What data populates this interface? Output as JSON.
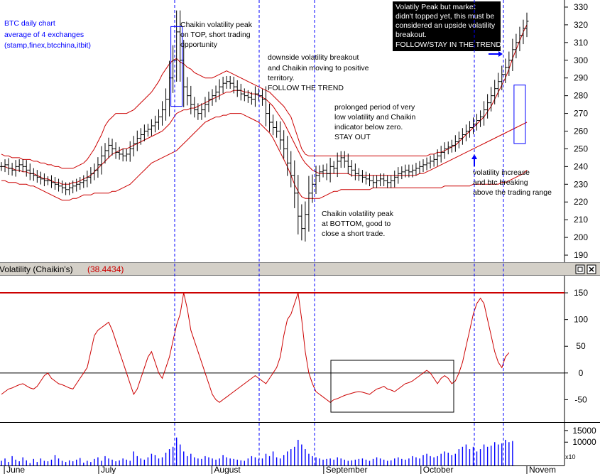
{
  "chart_data": {
    "type": "ohlc-bar",
    "title": "BTC daily chart",
    "subtitle": [
      "average of 4 exchanges",
      "(stamp,finex,btcchina,itbit)"
    ],
    "price_axis": {
      "ticks": [
        190,
        200,
        210,
        220,
        230,
        240,
        250,
        260,
        270,
        280,
        290,
        300,
        310,
        320,
        330
      ],
      "ylim": [
        186,
        334
      ]
    },
    "time_axis": {
      "labels": [
        "June",
        "July",
        "August",
        "September",
        "October",
        "Novem"
      ],
      "label_day_index": [
        2,
        67,
        145,
        222,
        289,
        362
      ]
    },
    "price_close": [
      240,
      241,
      239,
      238,
      240,
      241,
      240,
      238,
      236,
      235,
      234,
      233,
      232,
      232,
      231,
      230,
      229,
      228,
      227,
      228,
      229,
      230,
      231,
      232,
      234,
      236,
      238,
      241,
      246,
      249,
      252,
      250,
      248,
      247,
      246,
      247,
      250,
      253,
      256,
      258,
      260,
      261,
      263,
      265,
      268,
      272,
      278,
      290,
      300,
      316,
      300,
      285,
      280,
      275,
      272,
      270,
      272,
      275,
      278,
      280,
      282,
      285,
      287,
      288,
      287,
      285,
      283,
      281,
      280,
      279,
      278,
      281,
      280,
      278,
      270,
      265,
      262,
      260,
      255,
      250,
      242,
      235,
      225,
      212,
      205,
      213,
      225,
      230,
      235,
      237,
      238,
      236,
      240,
      239,
      243,
      245,
      243,
      240,
      238,
      236,
      235,
      234,
      233,
      232,
      231,
      232,
      233,
      232,
      231,
      232,
      234,
      236,
      237,
      238,
      237,
      238,
      239,
      240,
      241,
      242,
      243,
      244,
      246,
      248,
      250,
      251,
      252,
      254,
      256,
      258,
      260,
      262,
      264,
      266,
      268,
      272,
      276,
      280,
      284,
      288,
      292,
      296,
      300,
      306,
      310,
      314,
      318,
      322
    ],
    "bollinger": {
      "upper": [
        247,
        246,
        246,
        245,
        245,
        245,
        244,
        244,
        244,
        243,
        243,
        242,
        242,
        241,
        241,
        240,
        240,
        239,
        239,
        239,
        239,
        240,
        241,
        242,
        244,
        247,
        250,
        254,
        258,
        263,
        266,
        268,
        270,
        270,
        270,
        270,
        271,
        272,
        274,
        276,
        278,
        280,
        282,
        285,
        288,
        292,
        295,
        298,
        300,
        301,
        299,
        298,
        296,
        295,
        293,
        292,
        291,
        290,
        290,
        290,
        291,
        292,
        293,
        294,
        293,
        292,
        291,
        290,
        289,
        288,
        287,
        286,
        285,
        284,
        283,
        282,
        280,
        278,
        276,
        274,
        271,
        268,
        262,
        256,
        250,
        247,
        246,
        246,
        246,
        246,
        246,
        246,
        246,
        246,
        246,
        246,
        246,
        246,
        246,
        246,
        246,
        246,
        246,
        246,
        246,
        246,
        246,
        246,
        246,
        246,
        246,
        246,
        246,
        246,
        246,
        246,
        246,
        246,
        246,
        246,
        247,
        247,
        248,
        248,
        249,
        250,
        251,
        252,
        254,
        256,
        258,
        260,
        262,
        264,
        266,
        268,
        271,
        274,
        278,
        282,
        286,
        290,
        295,
        301,
        306,
        311,
        316,
        320
      ],
      "middle": [
        240,
        240,
        239,
        239,
        238,
        238,
        237,
        237,
        236,
        236,
        235,
        234,
        233,
        233,
        232,
        231,
        231,
        230,
        230,
        230,
        231,
        231,
        232,
        233,
        234,
        235,
        237,
        239,
        241,
        243,
        245,
        247,
        248,
        249,
        250,
        250,
        251,
        252,
        253,
        254,
        255,
        256,
        257,
        258,
        259,
        260,
        262,
        264,
        267,
        270,
        271,
        272,
        272,
        273,
        273,
        274,
        275,
        276,
        277,
        278,
        279,
        280,
        281,
        282,
        282,
        283,
        283,
        283,
        282,
        282,
        281,
        281,
        280,
        279,
        278,
        276,
        274,
        271,
        268,
        265,
        261,
        257,
        253,
        249,
        245,
        242,
        240,
        238,
        237,
        236,
        236,
        236,
        236,
        236,
        236,
        236,
        236,
        236,
        235,
        235,
        235,
        235,
        235,
        235,
        235,
        235,
        235,
        235,
        235,
        235,
        235,
        235,
        235,
        235,
        235,
        235,
        235,
        236,
        236,
        237,
        238,
        239,
        240,
        241,
        242,
        243,
        244,
        245,
        246,
        247,
        248,
        249,
        250,
        251,
        252,
        253,
        254,
        255,
        256,
        257,
        258,
        259,
        260,
        261,
        262,
        263,
        264,
        265
      ],
      "lower": [
        232,
        232,
        231,
        231,
        231,
        230,
        230,
        230,
        229,
        229,
        228,
        227,
        226,
        225,
        224,
        223,
        222,
        221,
        221,
        221,
        222,
        222,
        223,
        224,
        224,
        224,
        225,
        225,
        225,
        225,
        225,
        226,
        226,
        227,
        228,
        229,
        230,
        232,
        234,
        236,
        238,
        240,
        242,
        243,
        244,
        245,
        246,
        247,
        248,
        249,
        251,
        253,
        255,
        257,
        259,
        261,
        263,
        265,
        266,
        267,
        268,
        268,
        269,
        269,
        270,
        270,
        270,
        270,
        269,
        268,
        267,
        266,
        265,
        263,
        261,
        259,
        256,
        252,
        248,
        244,
        240,
        235,
        230,
        226,
        223,
        222,
        222,
        222,
        222,
        222,
        223,
        224,
        225,
        226,
        226,
        227,
        227,
        227,
        227,
        227,
        227,
        227,
        227,
        227,
        228,
        228,
        228,
        228,
        228,
        228,
        228,
        228,
        228,
        228,
        228,
        228,
        228,
        228,
        228,
        228,
        228,
        228,
        228,
        228,
        229,
        229,
        229,
        229,
        229,
        229,
        229,
        229,
        230,
        230,
        230,
        230,
        230,
        230,
        230,
        230,
        231,
        231,
        232,
        233,
        234,
        235,
        236,
        238
      ]
    },
    "indicator": {
      "title": "Volatility (Chaikin's)",
      "value_label": "(38.4434)",
      "ticks": [
        -50,
        0,
        50,
        100,
        150
      ],
      "ylim": [
        -92,
        182
      ],
      "reference_level": 150,
      "values": [
        -40,
        -35,
        -30,
        -28,
        -25,
        -22,
        -20,
        -24,
        -28,
        -30,
        -25,
        -15,
        -5,
        0,
        -10,
        -15,
        -20,
        -22,
        -25,
        -28,
        -30,
        -20,
        -10,
        0,
        10,
        40,
        70,
        80,
        85,
        90,
        95,
        80,
        60,
        40,
        20,
        0,
        -20,
        -40,
        -30,
        -10,
        10,
        30,
        40,
        20,
        0,
        -10,
        10,
        30,
        60,
        90,
        110,
        150,
        120,
        80,
        60,
        40,
        20,
        0,
        -20,
        -40,
        -50,
        -55,
        -50,
        -45,
        -40,
        -35,
        -30,
        -25,
        -20,
        -15,
        -10,
        -5,
        -10,
        -15,
        -20,
        -10,
        0,
        10,
        30,
        70,
        100,
        110,
        130,
        150,
        100,
        40,
        0,
        -20,
        -35,
        -40,
        -45,
        -50,
        -55,
        -50,
        -48,
        -45,
        -42,
        -40,
        -38,
        -36,
        -35,
        -36,
        -38,
        -40,
        -35,
        -30,
        -28,
        -25,
        -30,
        -32,
        -35,
        -30,
        -25,
        -20,
        -18,
        -15,
        -10,
        -5,
        0,
        5,
        0,
        -10,
        -20,
        -10,
        -5,
        -10,
        -20,
        -15,
        0,
        20,
        50,
        80,
        110,
        130,
        140,
        130,
        100,
        70,
        40,
        20,
        10,
        30,
        38
      ]
    },
    "volume": {
      "ticks": [
        10000,
        15000
      ],
      "tick_labels": [
        "10000",
        "15000"
      ],
      "multiplier_label": "x10",
      "values": [
        2000,
        3000,
        1500,
        4000,
        2500,
        1800,
        3500,
        2200,
        1000,
        2800,
        1500,
        3000,
        2000,
        1800,
        2500,
        4500,
        3000,
        2000,
        1500,
        2200,
        1800,
        2500,
        3200,
        1200,
        2000,
        1500,
        2800,
        3500,
        2000,
        4000,
        3000,
        2500,
        1800,
        2200,
        3000,
        2500,
        2000,
        6000,
        4000,
        3000,
        2500,
        3500,
        5000,
        4500,
        3000,
        3500,
        5500,
        7000,
        8000,
        12000,
        9000,
        6000,
        4000,
        5000,
        3500,
        3000,
        2800,
        4000,
        3500,
        3000,
        2500,
        3000,
        4500,
        3500,
        3000,
        2800,
        2500,
        2200,
        2000,
        3000,
        4000,
        3500,
        2800,
        3000,
        5000,
        4000,
        6000,
        3500,
        3000,
        4500,
        6000,
        7000,
        8000,
        11000,
        9000,
        7000,
        5000,
        4000,
        3500,
        3000,
        2500,
        2800,
        3000,
        2500,
        3500,
        3000,
        2500,
        2000,
        2200,
        2500,
        2800,
        3000,
        2500,
        2000,
        2800,
        3500,
        3000,
        2500,
        2000,
        2200,
        3000,
        3500,
        2800,
        2500,
        3000,
        4000,
        3500,
        3000,
        4500,
        5000,
        4000,
        3500,
        4000,
        5000,
        6000,
        5500,
        4500,
        5000,
        7000,
        8000,
        9000,
        7000,
        8000,
        6000,
        7000,
        9000,
        8000,
        8500,
        10000,
        9000,
        9500,
        11000,
        10000,
        10500
      ]
    },
    "event_lines_day_index": [
      67,
      145,
      200,
      260,
      290
    ],
    "annotations": {
      "volatility_peak_top": [
        "Chaikin volatility peak",
        "on TOP, short trading",
        "opportunity"
      ],
      "downside_breakout": [
        "downside volatility breakout",
        "and Chaikin moving to positive",
        "territory.",
        "FOLLOW THE TREND"
      ],
      "low_volatility": [
        "prolonged period of very",
        "low volatility and Chaikin",
        "indicator below zero.",
        "STAY OUT"
      ],
      "volatility_peak_bottom": [
        "Chaikin volatility peak",
        "at BOTTOM, good to",
        "close a short trade."
      ],
      "volatility_increase": [
        "volatility increase",
        "and btc breaking",
        "above the trading range"
      ],
      "upside_breakout_box": [
        "Volatily Peak but market",
        "didn't topped yet, this must be",
        "considered an upside volatility",
        "breakout.",
        "FOLLOW/STAY IN THE TREND"
      ]
    },
    "colors": {
      "price_bars": "#000000",
      "bands": "#cc0000",
      "indicator_line": "#cc0000",
      "reference_line": "#cc0000",
      "event_lines": "#0000ff",
      "title": "#0000ff",
      "volume_bars": "#0000ff",
      "panel_title_bg": "#d4d0c8"
    }
  }
}
